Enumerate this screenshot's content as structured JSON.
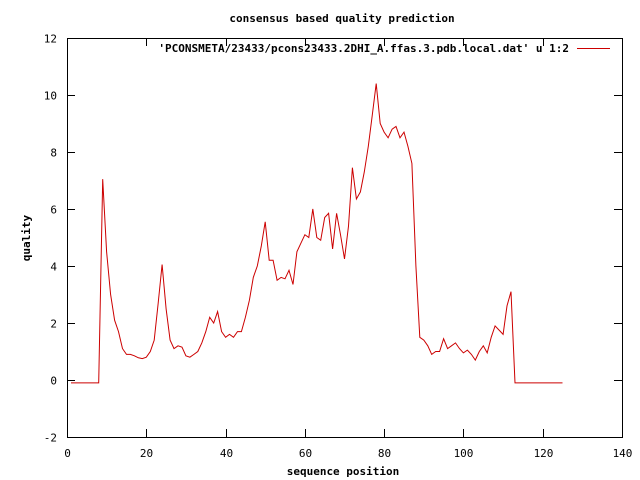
{
  "chart_data": {
    "type": "line",
    "title": "consensus based quality prediction",
    "xlabel": "sequence position",
    "ylabel": "quality",
    "xlim": [
      0,
      140
    ],
    "ylim": [
      -2,
      12
    ],
    "xticks": [
      0,
      20,
      40,
      60,
      80,
      100,
      120,
      140
    ],
    "yticks": [
      -2,
      0,
      2,
      4,
      6,
      8,
      10,
      12
    ],
    "grid": false,
    "legend_position": "top-right",
    "series": [
      {
        "name": "'PCONSMETA/23433/pcons23433.2DHI_A.ffas.3.pdb.local.dat' u 1:2",
        "color": "#cc0000",
        "x": [
          1,
          2,
          3,
          4,
          5,
          6,
          7,
          8,
          9,
          10,
          11,
          12,
          13,
          14,
          15,
          16,
          17,
          18,
          19,
          20,
          21,
          22,
          23,
          24,
          25,
          26,
          27,
          28,
          29,
          30,
          31,
          32,
          33,
          34,
          35,
          36,
          37,
          38,
          39,
          40,
          41,
          42,
          43,
          44,
          45,
          46,
          47,
          48,
          49,
          50,
          51,
          52,
          53,
          54,
          55,
          56,
          57,
          58,
          59,
          60,
          61,
          62,
          63,
          64,
          65,
          66,
          67,
          68,
          69,
          70,
          71,
          72,
          73,
          74,
          75,
          76,
          77,
          78,
          79,
          80,
          81,
          82,
          83,
          84,
          85,
          86,
          87,
          88,
          89,
          90,
          91,
          92,
          93,
          94,
          95,
          96,
          97,
          98,
          99,
          100,
          101,
          102,
          103,
          104,
          105,
          106,
          107,
          108,
          109,
          110,
          111,
          112,
          113,
          114,
          115,
          116,
          117,
          118,
          119,
          120,
          121,
          122,
          123,
          124,
          125
        ],
        "y": [
          -0.1,
          -0.1,
          -0.1,
          -0.1,
          -0.1,
          -0.1,
          -0.1,
          -0.1,
          7.05,
          4.5,
          3.0,
          2.1,
          1.7,
          1.1,
          0.9,
          0.9,
          0.85,
          0.78,
          0.75,
          0.8,
          1.0,
          1.4,
          2.7,
          4.05,
          2.5,
          1.4,
          1.1,
          1.2,
          1.15,
          0.85,
          0.8,
          0.9,
          1.0,
          1.3,
          1.7,
          2.2,
          2.0,
          2.4,
          1.7,
          1.5,
          1.6,
          1.5,
          1.7,
          1.7,
          2.2,
          2.8,
          3.6,
          4.0,
          4.7,
          5.55,
          4.2,
          4.2,
          3.5,
          3.6,
          3.55,
          3.85,
          3.35,
          4.5,
          4.8,
          5.1,
          5.0,
          6.0,
          5.0,
          4.9,
          5.7,
          5.85,
          4.6,
          5.85,
          5.1,
          4.25,
          5.4,
          7.45,
          6.35,
          6.6,
          7.3,
          8.2,
          9.3,
          10.4,
          9.0,
          8.7,
          8.5,
          8.8,
          8.9,
          8.5,
          8.7,
          8.2,
          7.6,
          4.0,
          1.5,
          1.4,
          1.2,
          0.9,
          1.0,
          1.0,
          1.45,
          1.1,
          1.2,
          1.3,
          1.1,
          0.95,
          1.05,
          0.9,
          0.7,
          1.0,
          1.2,
          0.95,
          1.5,
          1.9,
          1.75,
          1.6,
          2.6,
          3.1,
          -0.1,
          -0.1,
          -0.1,
          -0.1,
          -0.1,
          -0.1,
          -0.1,
          -0.1,
          -0.1,
          -0.1,
          -0.1,
          -0.1,
          -0.1
        ]
      }
    ]
  }
}
